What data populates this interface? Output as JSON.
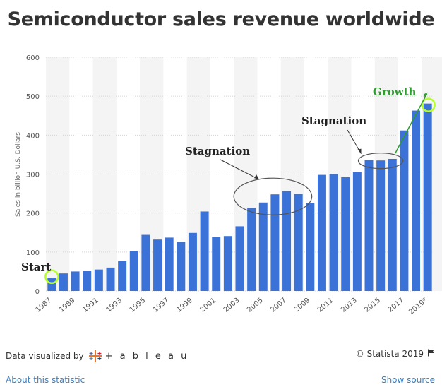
{
  "title": "Semiconductor sales revenue worldwide",
  "chart_data": {
    "type": "bar",
    "title": "Semiconductor sales revenue worldwide",
    "ylabel": "Sales in billion U.S. Dollars",
    "xlabel": "",
    "ylim": [
      0,
      600
    ],
    "yticks": [
      0,
      100,
      200,
      300,
      400,
      500,
      600
    ],
    "categories": [
      "1987",
      "1988",
      "1989",
      "1990",
      "1991",
      "1992",
      "1993",
      "1994",
      "1995",
      "1996",
      "1997",
      "1998",
      "1999",
      "2000",
      "2001",
      "2002",
      "2003",
      "2004",
      "2005",
      "2006",
      "2007",
      "2008",
      "2009",
      "2010",
      "2011",
      "2012",
      "2013",
      "2014",
      "2015",
      "2016",
      "2017",
      "2018",
      "2019*"
    ],
    "x_tick_labels": [
      "1987",
      "1989",
      "1991",
      "1993",
      "1995",
      "1997",
      "1999",
      "2001",
      "2003",
      "2005",
      "2007",
      "2009",
      "2011",
      "2013",
      "2015",
      "2017",
      "2019*"
    ],
    "values": [
      33,
      45,
      50,
      51,
      55,
      60,
      77,
      102,
      144,
      132,
      137,
      126,
      149,
      204,
      139,
      141,
      166,
      213,
      227,
      248,
      256,
      249,
      226,
      298,
      300,
      292,
      306,
      336,
      335,
      339,
      412,
      463,
      481
    ],
    "bar_color": "#3a72d8",
    "grid": true,
    "annotations": [
      {
        "text": "Start",
        "target_category": "1987"
      },
      {
        "text": "Stagnation",
        "target_categories": [
          "2004",
          "2008"
        ]
      },
      {
        "text": "Stagnation",
        "target_categories": [
          "2014",
          "2016"
        ]
      },
      {
        "text": "Growth",
        "target_category": "2019*"
      }
    ]
  },
  "footer": {
    "visualized_by": "Data visualized by",
    "tableau": "+ a b l e a u",
    "copyright": "© Statista 2019",
    "about": "About this statistic",
    "show_source": "Show source"
  },
  "icons": {
    "tableau_logo": "tableau-logo-icon",
    "flag": "flag-icon"
  }
}
